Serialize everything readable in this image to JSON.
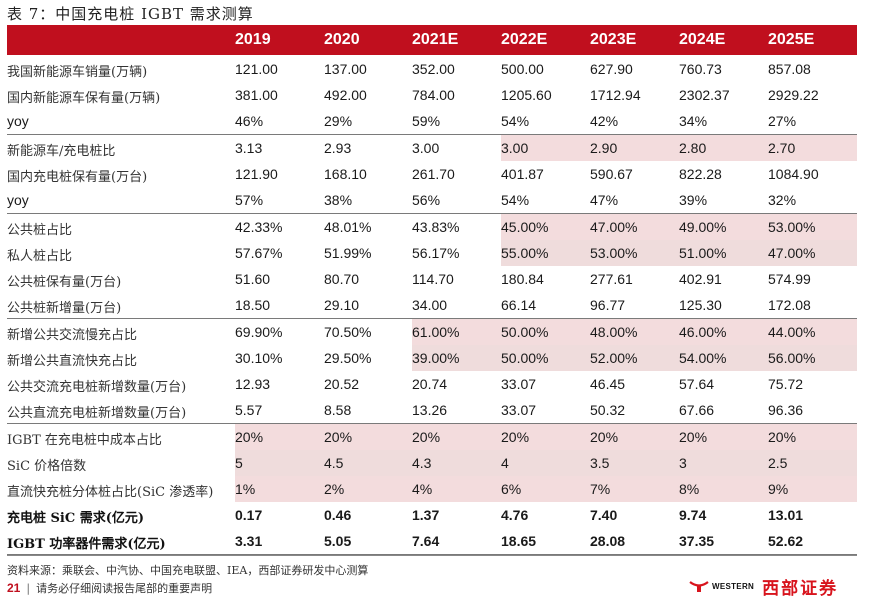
{
  "title": "表 7：中国充电桩 IGBT 需求测算",
  "colors": {
    "header_bg": "#c00f1e",
    "shade": "#f3dcdd",
    "brand_red": "#d8141d"
  },
  "columns": [
    "2019",
    "2020",
    "2021E",
    "2022E",
    "2023E",
    "2024E",
    "2025E"
  ],
  "rows": [
    {
      "label": "我国新能源车销量(万辆)",
      "values": [
        "121.00",
        "137.00",
        "352.00",
        "500.00",
        "627.90",
        "760.73",
        "857.08"
      ]
    },
    {
      "label": "国内新能源车保有量(万辆)",
      "values": [
        "381.00",
        "492.00",
        "784.00",
        "1205.60",
        "1712.94",
        "2302.37",
        "2929.22"
      ]
    },
    {
      "label": "yoy",
      "values": [
        "46%",
        "29%",
        "59%",
        "54%",
        "42%",
        "34%",
        "27%"
      ]
    },
    {
      "label": "新能源车/充电桩比",
      "values": [
        "3.13",
        "2.93",
        "3.00",
        "3.00",
        "2.90",
        "2.80",
        "2.70"
      ]
    },
    {
      "label": "国内充电桩保有量(万台)",
      "values": [
        "121.90",
        "168.10",
        "261.70",
        "401.87",
        "590.67",
        "822.28",
        "1084.90"
      ]
    },
    {
      "label": "yoy",
      "values": [
        "57%",
        "38%",
        "56%",
        "54%",
        "47%",
        "39%",
        "32%"
      ]
    },
    {
      "label": "公共桩占比",
      "values": [
        "42.33%",
        "48.01%",
        "43.83%",
        "45.00%",
        "47.00%",
        "49.00%",
        "53.00%"
      ]
    },
    {
      "label": "私人桩占比",
      "values": [
        "57.67%",
        "51.99%",
        "56.17%",
        "55.00%",
        "53.00%",
        "51.00%",
        "47.00%"
      ]
    },
    {
      "label": "公共桩保有量(万台)",
      "values": [
        "51.60",
        "80.70",
        "114.70",
        "180.84",
        "277.61",
        "402.91",
        "574.99"
      ]
    },
    {
      "label": "公共桩新增量(万台)",
      "values": [
        "18.50",
        "29.10",
        "34.00",
        "66.14",
        "96.77",
        "125.30",
        "172.08"
      ]
    },
    {
      "label": "新增公共交流慢充占比",
      "values": [
        "69.90%",
        "70.50%",
        "61.00%",
        "50.00%",
        "48.00%",
        "46.00%",
        "44.00%"
      ]
    },
    {
      "label": "新增公共直流快充占比",
      "values": [
        "30.10%",
        "29.50%",
        "39.00%",
        "50.00%",
        "52.00%",
        "54.00%",
        "56.00%"
      ]
    },
    {
      "label": "公共交流充电桩新增数量(万台)",
      "values": [
        "12.93",
        "20.52",
        "20.74",
        "33.07",
        "46.45",
        "57.64",
        "75.72"
      ]
    },
    {
      "label": "公共直流充电桩新增数量(万台)",
      "values": [
        "5.57",
        "8.58",
        "13.26",
        "33.07",
        "50.32",
        "67.66",
        "96.36"
      ]
    },
    {
      "label": "IGBT 在充电桩中成本占比",
      "values": [
        "20%",
        "20%",
        "20%",
        "20%",
        "20%",
        "20%",
        "20%"
      ]
    },
    {
      "label": "SiC 价格倍数",
      "values": [
        "5",
        "4.5",
        "4.3",
        "4",
        "3.5",
        "3",
        "2.5"
      ]
    },
    {
      "label": "直流快充桩分体桩占比(SiC 渗透率)",
      "values": [
        "1%",
        "2%",
        "4%",
        "6%",
        "7%",
        "8%",
        "9%"
      ]
    },
    {
      "label": "充电桩 SiC 需求(亿元)",
      "values": [
        "0.17",
        "0.46",
        "1.37",
        "4.76",
        "7.40",
        "9.74",
        "13.01"
      ]
    },
    {
      "label": "IGBT 功率器件需求(亿元)",
      "values": [
        "3.31",
        "5.05",
        "7.64",
        "18.65",
        "28.08",
        "37.35",
        "52.62"
      ]
    }
  ],
  "footer": {
    "source": "资料来源：乘联会、中汽协、中国充电联盟、IEA，西部证券研发中心测算",
    "page_number": "21",
    "disclaimer": "请务必仔细阅读报告尾部的重要声明",
    "logo_en": "WESTERN",
    "logo_cn": "西部证券"
  }
}
